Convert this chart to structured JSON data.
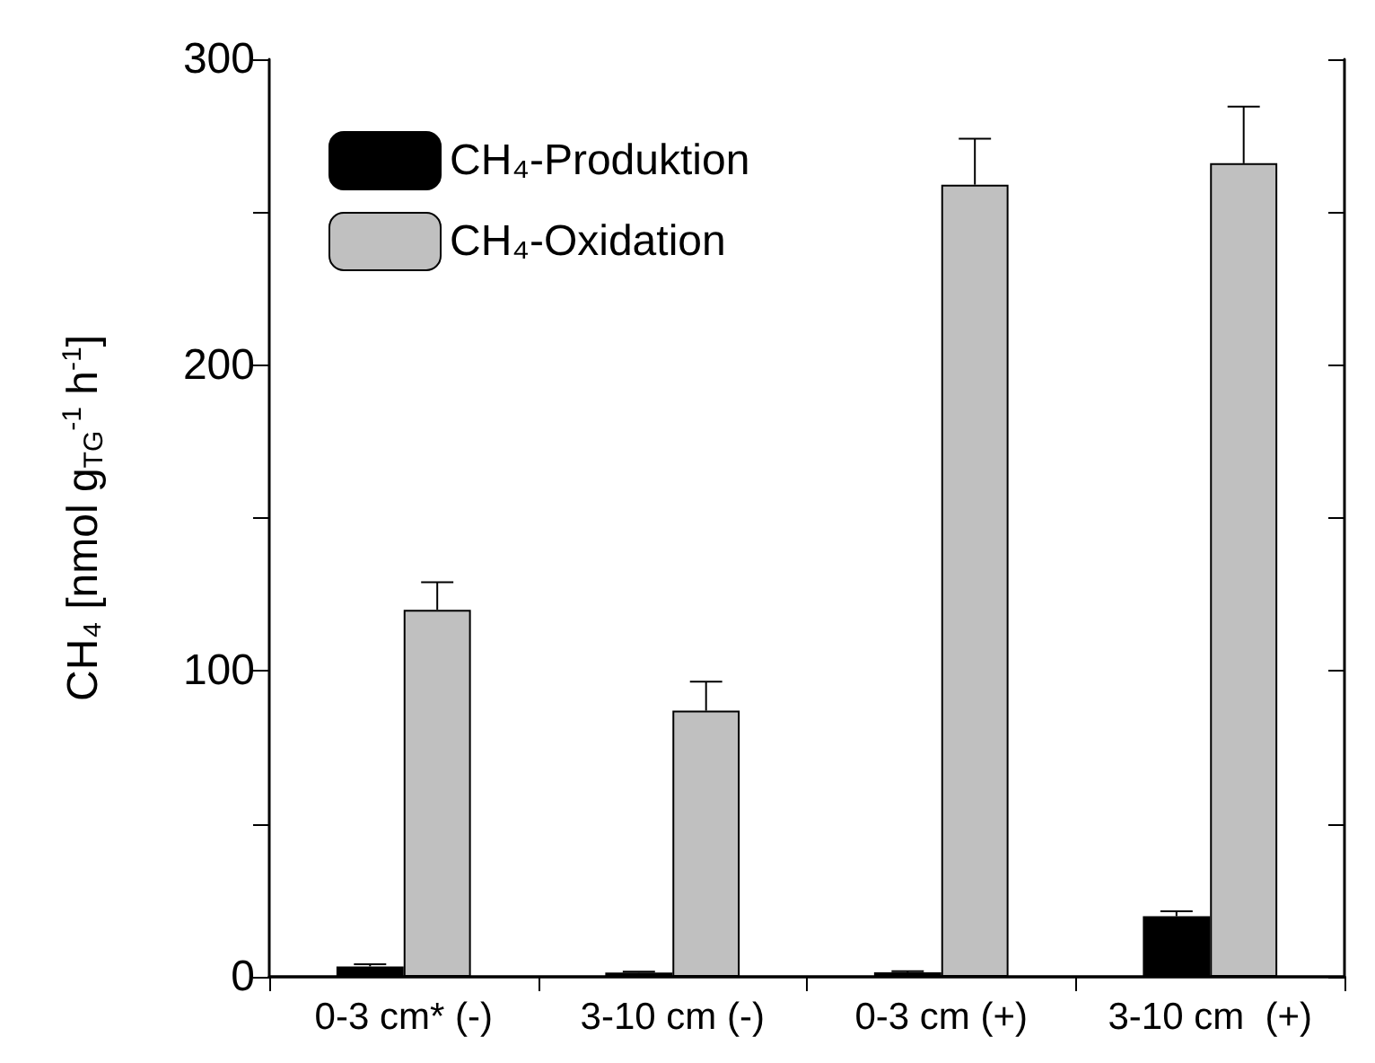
{
  "chart_data": {
    "type": "bar",
    "ylabel": "CH₄ [nmol g$_{TG}$$^{-1}$ h$^{-1}$]",
    "categories": [
      "0-3 cm* (-)",
      "3-10 cm (-)",
      "0-3 cm (+)",
      "3-10 cm  (+)"
    ],
    "series": [
      {
        "name": "CH₄-Produktion",
        "color": "#000000",
        "values": [
          3.4,
          1.4,
          1.5,
          19.8
        ],
        "errors": [
          [
            3.4,
            4.1
          ],
          [
            1.4,
            1.7
          ],
          [
            1.5,
            1.8
          ],
          [
            19.8,
            21.4
          ]
        ]
      },
      {
        "name": "CH₄-Oxidation",
        "color": "#c0c0c0",
        "values": [
          120,
          87,
          259,
          266
        ],
        "errors": [
          [
            120,
            129
          ],
          [
            87,
            96.5
          ],
          [
            259,
            274
          ],
          [
            266,
            284.5
          ]
        ]
      }
    ],
    "ylim": [
      0,
      300
    ],
    "yticks": [
      0,
      {
        "value": 50,
        "label": null
      },
      100,
      {
        "value": 150,
        "label": null
      },
      200,
      {
        "value": 250,
        "label": null
      },
      300
    ],
    "legend": "top left"
  }
}
